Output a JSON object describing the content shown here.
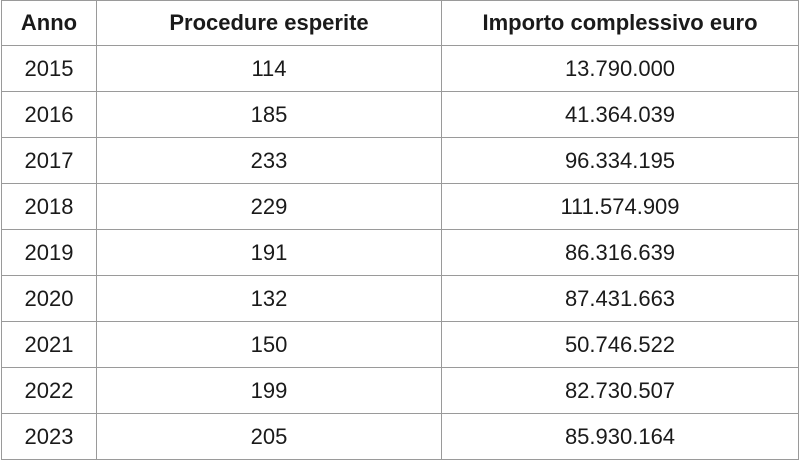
{
  "table": {
    "headers": [
      "Anno",
      "Procedure esperite",
      "Importo complessivo euro"
    ],
    "rows": [
      [
        "2015",
        "114",
        "13.790.000"
      ],
      [
        "2016",
        "185",
        "41.364.039"
      ],
      [
        "2017",
        "233",
        "96.334.195"
      ],
      [
        "2018",
        "229",
        "111.574.909"
      ],
      [
        "2019",
        "191",
        "86.316.639"
      ],
      [
        "2020",
        "132",
        "87.431.663"
      ],
      [
        "2021",
        "150",
        "50.746.522"
      ],
      [
        "2022",
        "199",
        "82.730.507"
      ],
      [
        "2023",
        "205",
        "85.930.164"
      ]
    ]
  }
}
